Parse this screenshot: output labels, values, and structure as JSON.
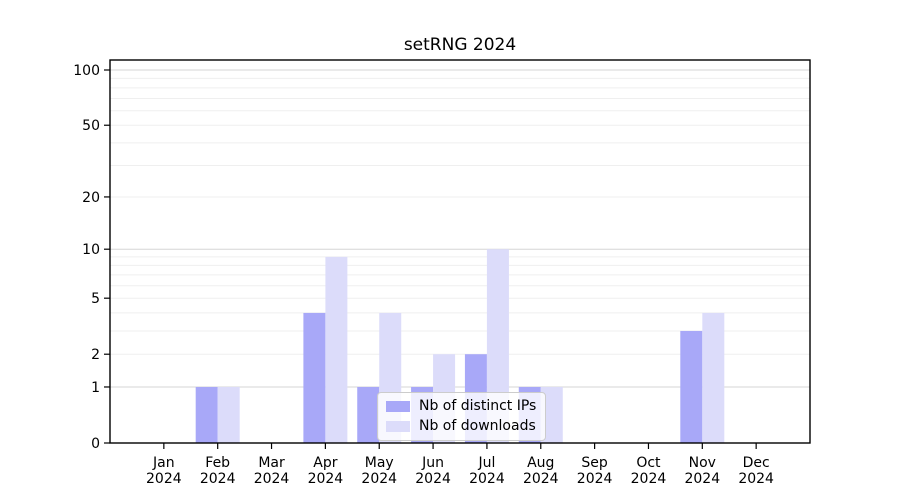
{
  "chart_data": {
    "type": "bar",
    "title": "setRNG 2024",
    "year_label": "2024",
    "months": [
      "Jan",
      "Feb",
      "Mar",
      "Apr",
      "May",
      "Jun",
      "Jul",
      "Aug",
      "Sep",
      "Oct",
      "Nov",
      "Dec"
    ],
    "categories": [
      "Jan 2024",
      "Feb 2024",
      "Mar 2024",
      "Apr 2024",
      "May 2024",
      "Jun 2024",
      "Jul 2024",
      "Aug 2024",
      "Sep 2024",
      "Oct 2024",
      "Nov 2024",
      "Dec 2024"
    ],
    "series": [
      {
        "name": "Nb of distinct IPs",
        "color": "#a8a8f8",
        "values": [
          0,
          1,
          0,
          4,
          1,
          1,
          2,
          1,
          0,
          0,
          3,
          0
        ]
      },
      {
        "name": "Nb of downloads",
        "color": "#dcdcfa",
        "values": [
          0,
          1,
          0,
          9,
          4,
          2,
          10,
          1,
          0,
          0,
          4,
          0
        ]
      }
    ],
    "y_axis": {
      "scale": "log1p",
      "ticks": [
        0,
        1,
        2,
        5,
        10,
        20,
        50,
        100
      ],
      "ylim": [
        0,
        113
      ],
      "grid_minor_values": [
        2,
        3,
        4,
        5,
        6,
        7,
        8,
        9,
        20,
        30,
        40,
        50,
        60,
        70,
        80,
        90
      ],
      "grid_major_values": [
        1,
        10,
        100
      ],
      "grid_minor_color": "#efefef",
      "grid_major_color": "#d6d6d6"
    },
    "legend": {
      "position": "lower center",
      "border_color": "#cccccc",
      "background": "rgba(255,255,255,0.8)"
    },
    "frame_color": "#000000",
    "background_color": "#ffffff"
  }
}
